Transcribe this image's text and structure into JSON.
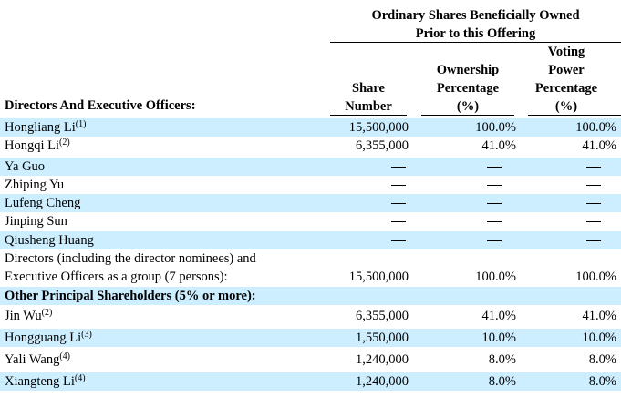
{
  "header": {
    "group_title_line1": "Ordinary Shares Beneficially Owned",
    "group_title_line2": "Prior to this Offering",
    "section_label": "Directors And Executive Officers:",
    "col_share": [
      "Share",
      "Number"
    ],
    "col_ownership": [
      "Ownership",
      "Percentage",
      "(%)"
    ],
    "col_voting": [
      "Voting",
      "Power",
      "Percentage",
      "(%)"
    ]
  },
  "rows": [
    {
      "name": "Hongliang Li",
      "note": "(1)",
      "shares": "15,500,000",
      "ownership": "100.0%",
      "voting": "100.0%"
    },
    {
      "name": "Hongqi Li",
      "note": "(2)",
      "shares": "6,355,000",
      "ownership": "41.0%",
      "voting": "41.0%"
    },
    {
      "name": "Ya Guo",
      "note": "",
      "shares": "",
      "ownership": "",
      "voting": ""
    },
    {
      "name": "Zhiping Yu",
      "note": "",
      "shares": "",
      "ownership": "",
      "voting": ""
    },
    {
      "name": "Lufeng Cheng",
      "note": "",
      "shares": "",
      "ownership": "",
      "voting": ""
    },
    {
      "name": "Jinping Sun",
      "note": "",
      "shares": "",
      "ownership": "",
      "voting": ""
    },
    {
      "name": "Qiusheng Huang",
      "note": "",
      "shares": "",
      "ownership": "",
      "voting": ""
    }
  ],
  "group_row": {
    "line1": "Directors (including the director nominees) and",
    "line2": "Executive Officers as a group (7 persons):",
    "shares": "15,500,000",
    "ownership": "100.0%",
    "voting": "100.0%"
  },
  "other_section_label": "Other Principal Shareholders (5% or more):",
  "other_rows": [
    {
      "name": "Jin Wu",
      "note": "(2)",
      "shares": "6,355,000",
      "ownership": "41.0%",
      "voting": "41.0%"
    },
    {
      "name": "Hongguang Li",
      "note": "(3)",
      "shares": "1,550,000",
      "ownership": "10.0%",
      "voting": "10.0%"
    },
    {
      "name": "Yali Wang",
      "note": "(4)",
      "shares": "1,240,000",
      "ownership": "8.0%",
      "voting": "8.0%"
    },
    {
      "name": "Xiangteng Li",
      "note": "(4)",
      "shares": "1,240,000",
      "ownership": "8.0%",
      "voting": "8.0%"
    }
  ]
}
